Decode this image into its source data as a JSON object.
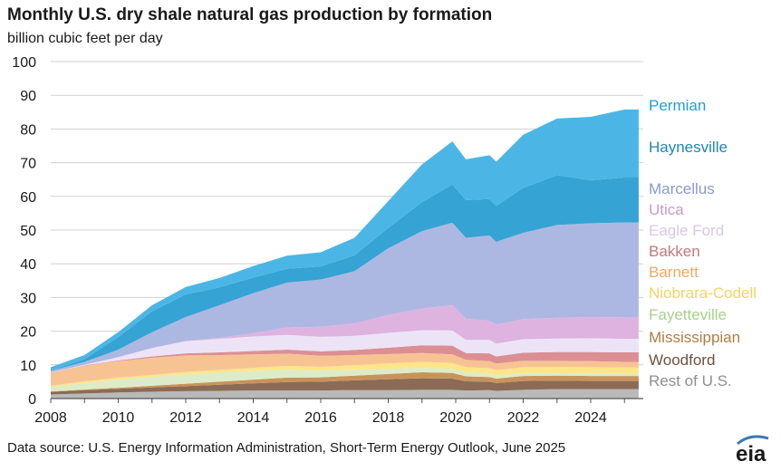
{
  "title": "Monthly U.S. dry shale natural gas production by formation",
  "subtitle": "billion  cubic  feet per day",
  "source": "Data source: U.S. Energy Information Administration,  Short-Term Energy Outlook, June 2025",
  "logo_text": "eia",
  "colors": {
    "Rest of U.S.": "#b9b9b9",
    "Woodford": "#8b6b55",
    "Mississippian": "#c8935a",
    "Fayetteville": "#dcecc8",
    "Niobrara-Codell": "#fde58a",
    "Barnett": "#f8c393",
    "Bakken": "#dc8f93",
    "Eagle Ford": "#ece4f6",
    "Utica": "#deb3e0",
    "Marcellus": "#adb8e2",
    "Haynesville": "#35a3d3",
    "Permian": "#4bb6e6"
  },
  "chart_data": {
    "type": "area",
    "stacked": true,
    "title": "Monthly U.S. dry shale natural gas production by formation",
    "ylabel": "billion  cubic  feet per day",
    "xlabel": "",
    "xlim": [
      2008,
      2025.42
    ],
    "ylim": [
      0,
      100
    ],
    "x_ticks": [
      2008,
      2010,
      2012,
      2014,
      2016,
      2018,
      2020,
      2022,
      2024
    ],
    "y_ticks": [
      0,
      10,
      20,
      30,
      40,
      50,
      60,
      70,
      80,
      90,
      100
    ],
    "grid": true,
    "x": [
      2008,
      2009,
      2010,
      2011,
      2012,
      2013,
      2014,
      2015,
      2016,
      2017,
      2018,
      2019,
      2019.9,
      2020.3,
      2021,
      2021.2,
      2022,
      2023,
      2024,
      2025,
      2025.42
    ],
    "series": [
      {
        "name": "Rest of U.S.",
        "values": [
          1.2,
          1.5,
          1.8,
          2.0,
          2.2,
          2.3,
          2.4,
          2.4,
          2.4,
          2.5,
          2.5,
          2.6,
          2.6,
          2.4,
          2.5,
          2.3,
          2.6,
          2.8,
          2.8,
          2.8,
          2.8
        ]
      },
      {
        "name": "Woodford",
        "values": [
          0.8,
          1.0,
          1.1,
          1.3,
          1.5,
          1.8,
          2.1,
          2.5,
          2.6,
          2.9,
          3.2,
          3.4,
          3.3,
          2.7,
          2.5,
          2.3,
          2.6,
          2.5,
          2.4,
          2.4,
          2.4
        ]
      },
      {
        "name": "Mississippian",
        "values": [
          0.1,
          0.2,
          0.3,
          0.5,
          0.7,
          0.9,
          1.1,
          1.3,
          1.3,
          1.4,
          1.6,
          1.8,
          1.7,
          1.5,
          1.4,
          1.3,
          1.5,
          1.5,
          1.5,
          1.5,
          1.5
        ]
      },
      {
        "name": "Fayetteville",
        "values": [
          1.2,
          1.9,
          2.4,
          2.6,
          2.8,
          2.7,
          2.6,
          2.4,
          2.0,
          1.8,
          1.5,
          1.3,
          1.2,
          1.1,
          1.0,
          1.0,
          0.9,
          0.8,
          0.8,
          0.7,
          0.7
        ]
      },
      {
        "name": "Niobrara-Codell",
        "values": [
          0.5,
          0.5,
          0.6,
          0.6,
          0.7,
          0.8,
          0.9,
          1.1,
          1.1,
          1.3,
          1.6,
          1.8,
          1.8,
          1.6,
          1.6,
          1.5,
          1.7,
          1.8,
          1.8,
          1.8,
          1.8
        ]
      },
      {
        "name": "Barnett",
        "values": [
          3.8,
          4.6,
          4.9,
          5.1,
          4.9,
          4.4,
          4.0,
          3.6,
          3.3,
          3.0,
          2.8,
          2.6,
          2.5,
          2.2,
          2.1,
          2.0,
          1.9,
          1.8,
          1.8,
          1.7,
          1.7
        ]
      },
      {
        "name": "Bakken",
        "values": [
          0.1,
          0.1,
          0.2,
          0.4,
          0.6,
          0.8,
          1.0,
          1.2,
          1.3,
          1.5,
          1.9,
          2.3,
          2.6,
          2.0,
          2.3,
          2.1,
          2.4,
          2.6,
          2.7,
          2.8,
          2.8
        ]
      },
      {
        "name": "Eagle Ford",
        "values": [
          0.1,
          0.2,
          1.0,
          2.5,
          3.6,
          4.0,
          4.3,
          4.4,
          4.3,
          4.2,
          4.4,
          4.5,
          4.5,
          3.9,
          4.0,
          3.8,
          4.0,
          4.0,
          4.1,
          4.0,
          4.0
        ]
      },
      {
        "name": "Utica",
        "values": [
          0.0,
          0.0,
          0.0,
          0.0,
          0.1,
          0.3,
          1.0,
          2.2,
          3.0,
          3.7,
          5.3,
          6.4,
          7.5,
          6.3,
          5.7,
          5.6,
          6.0,
          6.2,
          6.3,
          6.4,
          6.4
        ]
      },
      {
        "name": "Marcellus",
        "values": [
          0.4,
          0.9,
          2.2,
          4.7,
          7.1,
          9.7,
          11.9,
          13.3,
          14.0,
          15.5,
          19.8,
          23.0,
          24.5,
          24.0,
          25.3,
          24.6,
          25.6,
          27.5,
          27.8,
          28.2,
          28.2
        ]
      },
      {
        "name": "Haynesville",
        "values": [
          0.1,
          0.8,
          3.7,
          6.2,
          6.7,
          5.3,
          4.6,
          4.1,
          3.9,
          4.7,
          6.0,
          8.6,
          11.3,
          11.2,
          10.8,
          10.7,
          13.3,
          14.8,
          12.8,
          13.3,
          13.3
        ]
      },
      {
        "name": "Permian",
        "values": [
          1.0,
          1.2,
          1.5,
          1.8,
          2.2,
          2.8,
          3.4,
          3.9,
          4.2,
          5.2,
          8.0,
          11.2,
          12.8,
          12.1,
          13.0,
          13.1,
          15.8,
          16.8,
          18.8,
          20.2,
          20.2
        ]
      }
    ],
    "legend_placement": "right",
    "legend": [
      "Permian",
      "Haynesville",
      "Marcellus",
      "Utica",
      "Eagle Ford",
      "Bakken",
      "Barnett",
      "Niobrara-Codell",
      "Fayetteville",
      "Mississippian",
      "Woodford",
      "Rest of U.S."
    ]
  }
}
